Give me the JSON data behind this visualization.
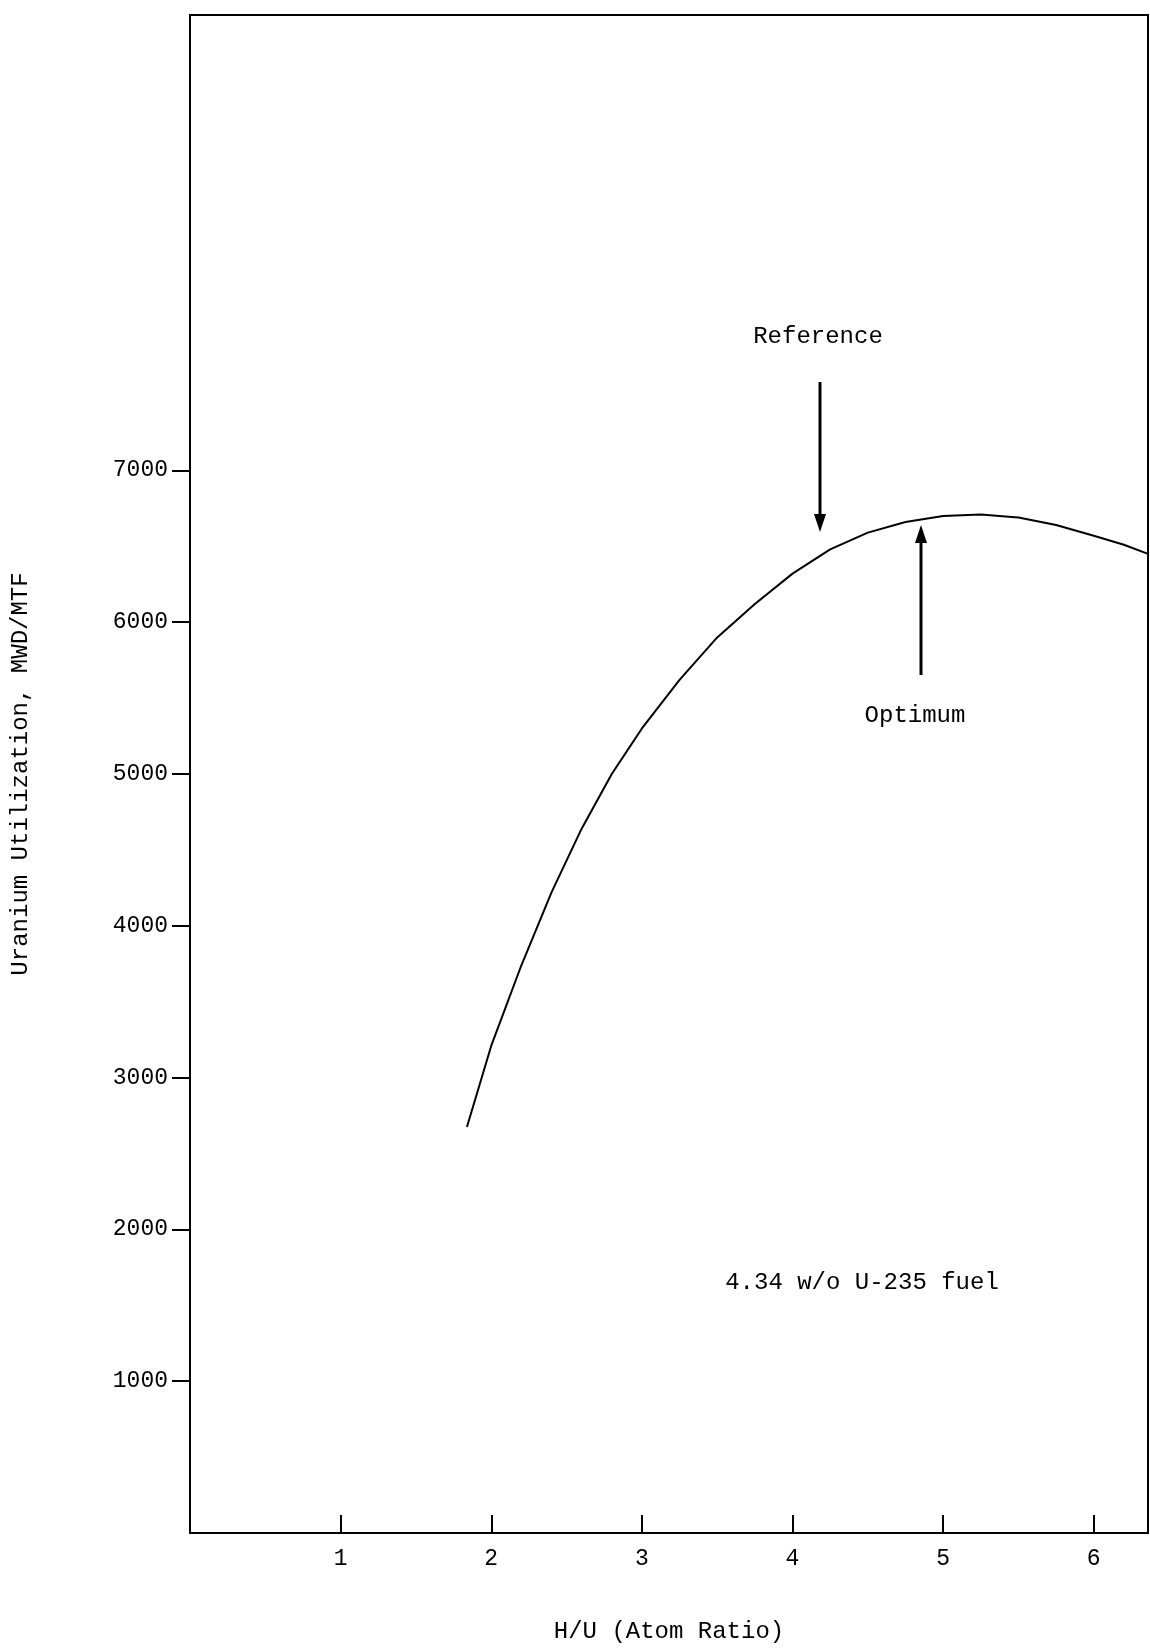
{
  "chart_data": {
    "type": "line",
    "xlabel": "H/U (Atom Ratio)",
    "ylabel": "Uranium Utilization, MWD/MTF",
    "x": [
      1.84,
      2.0,
      2.2,
      2.4,
      2.6,
      2.8,
      3.0,
      3.25,
      3.5,
      3.75,
      4.0,
      4.25,
      4.5,
      4.75,
      5.0,
      5.25,
      5.5,
      5.75,
      6.0,
      6.2,
      6.36
    ],
    "series": [
      {
        "color": "#000000",
        "values": [
          2680,
          3210,
          3740,
          4220,
          4640,
          5000,
          5300,
          5620,
          5900,
          6120,
          6320,
          6480,
          6590,
          6660,
          6700,
          6710,
          6690,
          6640,
          6570,
          6510,
          6450
        ]
      }
    ],
    "xlim": [
      0,
      6.36
    ],
    "xticks": [
      1,
      2,
      3,
      4,
      5,
      6
    ],
    "ylim": [
      0,
      10000
    ],
    "yticks": [
      1000,
      2000,
      3000,
      4000,
      5000,
      6000,
      7000
    ],
    "grid": false,
    "marker": "none",
    "line_style": "solid",
    "annotations": [
      "Reference",
      "Optimum",
      "4.34 w/o U-235 fuel"
    ]
  }
}
